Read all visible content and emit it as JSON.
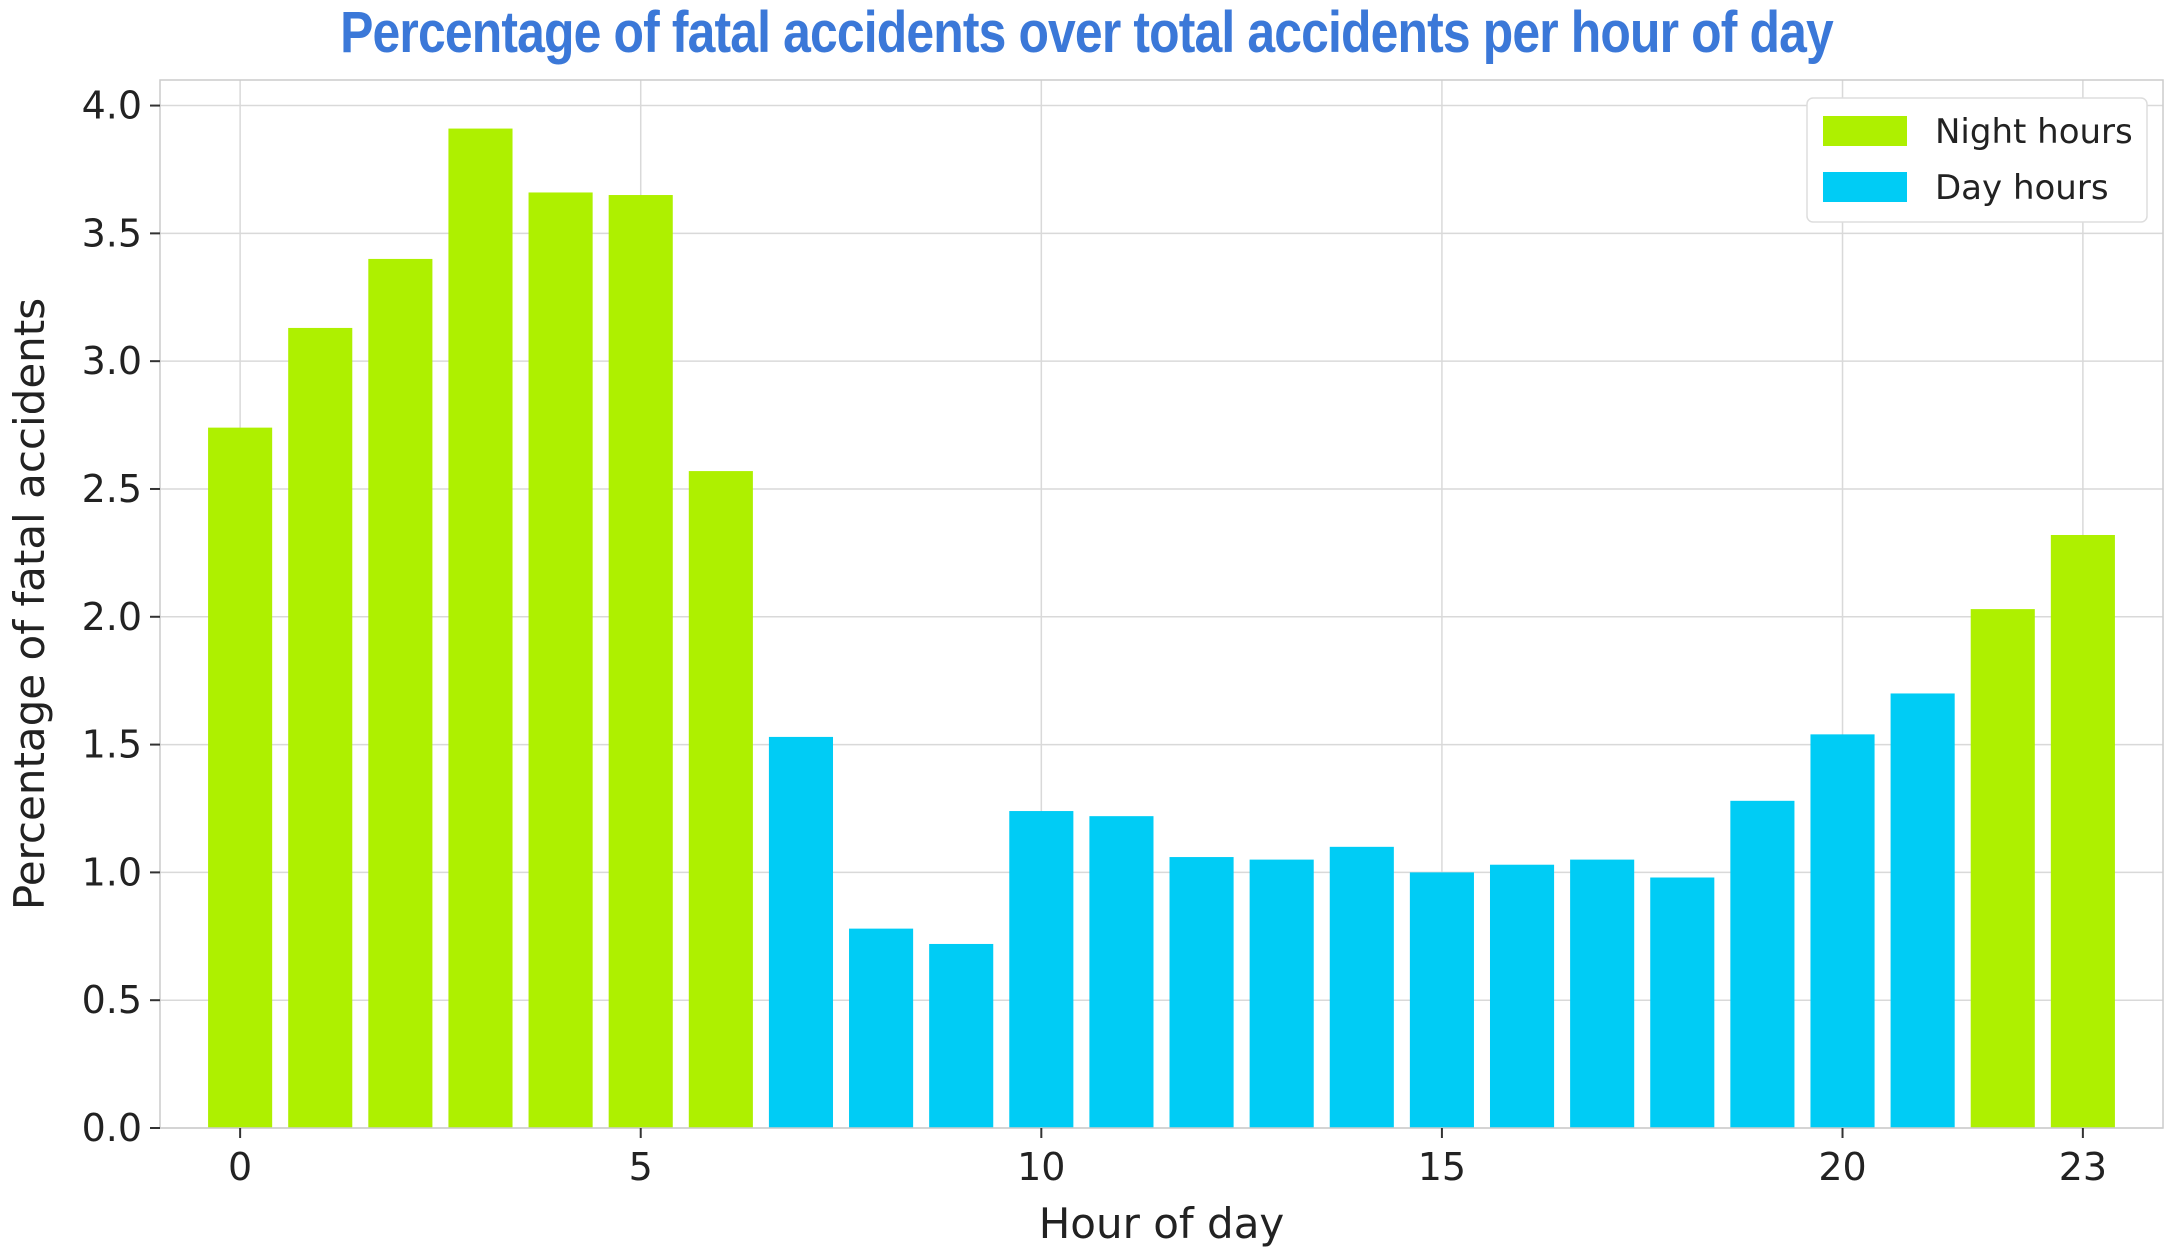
{
  "chart_data": {
    "type": "bar",
    "title": "Percentage of fatal accidents over total accidents per hour of day",
    "xlabel": "Hour of day",
    "ylabel": "Percentage of fatal accidents",
    "categories": [
      0,
      1,
      2,
      3,
      4,
      5,
      6,
      7,
      8,
      9,
      10,
      11,
      12,
      13,
      14,
      15,
      16,
      17,
      18,
      19,
      20,
      21,
      22,
      23
    ],
    "values": [
      2.74,
      3.13,
      3.4,
      3.91,
      3.66,
      3.65,
      2.57,
      1.53,
      0.78,
      0.72,
      1.24,
      1.22,
      1.06,
      1.05,
      1.1,
      1.0,
      1.03,
      1.05,
      0.98,
      1.28,
      1.54,
      1.7,
      2.03,
      2.32
    ],
    "series_membership": [
      "night",
      "night",
      "night",
      "night",
      "night",
      "night",
      "night",
      "day",
      "day",
      "day",
      "day",
      "day",
      "day",
      "day",
      "day",
      "day",
      "day",
      "day",
      "day",
      "day",
      "day",
      "day",
      "night",
      "night"
    ],
    "legend": [
      {
        "key": "night",
        "label": "Night hours",
        "color": "#aef000"
      },
      {
        "key": "day",
        "label": "Day hours",
        "color": "#00ccf5"
      }
    ],
    "x_ticks": [
      0,
      5,
      10,
      15,
      20,
      23
    ],
    "y_ticks": [
      0.0,
      0.5,
      1.0,
      1.5,
      2.0,
      2.5,
      3.0,
      3.5,
      4.0
    ],
    "y_tick_labels": [
      "0.0",
      "0.5",
      "1.0",
      "1.5",
      "2.0",
      "2.5",
      "3.0",
      "3.5",
      "4.0"
    ],
    "ylim": [
      0,
      4.1
    ],
    "xlim": [
      -1,
      24
    ],
    "grid": true,
    "legend_position": "top-right",
    "colors": {
      "title": "#3b78d8",
      "grid": "#d9d9d9",
      "axis": "#cccccc"
    }
  }
}
